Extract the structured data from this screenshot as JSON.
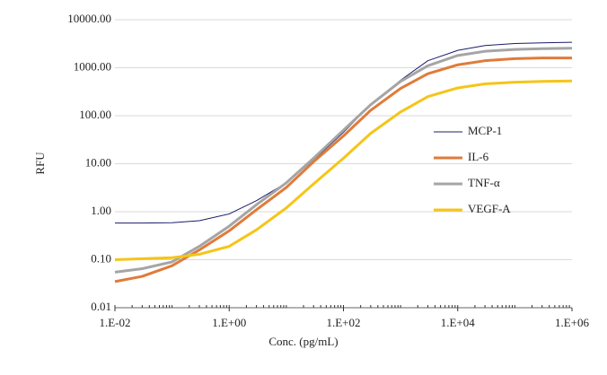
{
  "chart_data": {
    "type": "line",
    "x_label": "Conc. (pg/mL)",
    "y_label": "RFU",
    "x": [
      0.01,
      0.03,
      0.1,
      0.3,
      1,
      3,
      10,
      30,
      100,
      300,
      1000,
      3000,
      10000,
      30000,
      100000,
      300000,
      1000000
    ],
    "series": [
      {
        "name": "MCP-1",
        "color": "#1c1c6b",
        "width": 1,
        "values": [
          0.58,
          0.58,
          0.59,
          0.65,
          0.9,
          1.7,
          4,
          12,
          45,
          170,
          550,
          1400,
          2300,
          2900,
          3200,
          3300,
          3400
        ]
      },
      {
        "name": "IL-6",
        "color": "#e07b39",
        "width": 3,
        "values": [
          0.035,
          0.045,
          0.075,
          0.16,
          0.4,
          1.1,
          3.2,
          11,
          38,
          130,
          370,
          750,
          1150,
          1400,
          1550,
          1600,
          1600
        ]
      },
      {
        "name": "TNF-α",
        "color": "#a5a5a5",
        "width": 3,
        "values": [
          0.055,
          0.065,
          0.09,
          0.19,
          0.5,
          1.4,
          4,
          13,
          50,
          170,
          520,
          1100,
          1800,
          2200,
          2400,
          2500,
          2550
        ]
      },
      {
        "name": "VEGF-A",
        "color": "#f5c518",
        "width": 3,
        "values": [
          0.1,
          0.105,
          0.11,
          0.13,
          0.19,
          0.42,
          1.2,
          3.8,
          13,
          43,
          120,
          250,
          380,
          460,
          500,
          520,
          530
        ]
      }
    ],
    "xlog": true,
    "ylog": true,
    "xlim": [
      0.01,
      1000000
    ],
    "ylim": [
      0.01,
      10000
    ],
    "xticks": [
      {
        "value": 0.01,
        "label": "1.E-02"
      },
      {
        "value": 1,
        "label": "1.E+00"
      },
      {
        "value": 100,
        "label": "1.E+02"
      },
      {
        "value": 10000,
        "label": "1.E+04"
      },
      {
        "value": 1000000,
        "label": "1.E+06"
      }
    ],
    "yticks": [
      {
        "value": 0.01,
        "label": "0.01"
      },
      {
        "value": 0.1,
        "label": "0.10"
      },
      {
        "value": 1,
        "label": "1.00"
      },
      {
        "value": 10,
        "label": "10.00"
      },
      {
        "value": 100,
        "label": "100.00"
      },
      {
        "value": 1000,
        "label": "1000.00"
      },
      {
        "value": 10000,
        "label": "10000.00"
      }
    ],
    "grid": true,
    "legend": "right"
  }
}
